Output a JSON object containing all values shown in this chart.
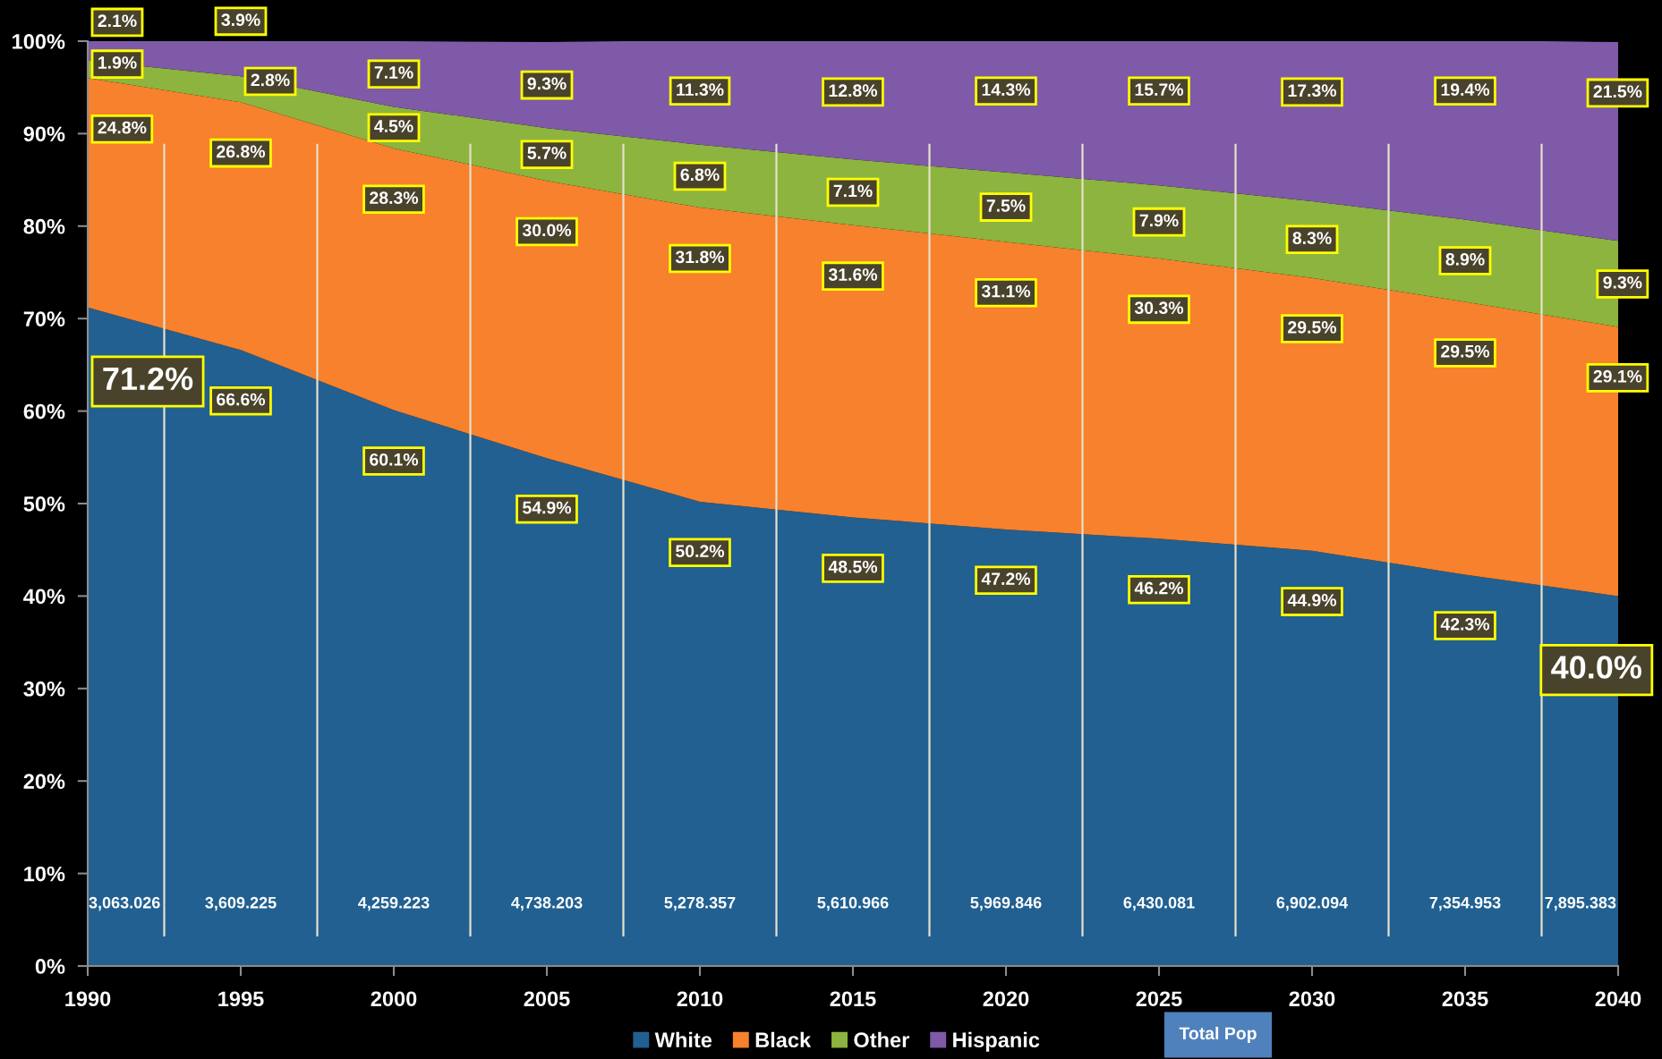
{
  "chart_data": {
    "type": "area",
    "stacked": true,
    "x": [
      1990,
      1995,
      2000,
      2005,
      2010,
      2015,
      2020,
      2025,
      2030,
      2035,
      2040
    ],
    "xlim": [
      1990,
      2040
    ],
    "xticks": [
      1990,
      1995,
      2000,
      2005,
      2010,
      2015,
      2020,
      2025,
      2030,
      2035,
      2040
    ],
    "ylim": [
      0,
      100
    ],
    "yticks": [
      {
        "value": 0,
        "label": "0%"
      },
      {
        "value": 10,
        "label": "10%"
      },
      {
        "value": 20,
        "label": "20%"
      },
      {
        "value": 30,
        "label": "30%"
      },
      {
        "value": 40,
        "label": "40%"
      },
      {
        "value": 50,
        "label": "50%"
      },
      {
        "value": 60,
        "label": "60%"
      },
      {
        "value": 70,
        "label": "70%"
      },
      {
        "value": 80,
        "label": "80%"
      },
      {
        "value": 90,
        "label": "90%"
      },
      {
        "value": 100,
        "label": "100%"
      }
    ],
    "series": [
      {
        "name": "White",
        "color": "#216091",
        "values": [
          71.2,
          66.6,
          60.1,
          54.9,
          50.2,
          48.5,
          47.2,
          46.2,
          44.9,
          42.3,
          40.0
        ],
        "value_labels": [
          "71.2%",
          "66.6%",
          "60.1%",
          "54.9%",
          "50.2%",
          "48.5%",
          "47.2%",
          "46.2%",
          "44.9%",
          "42.3%",
          "40.0%"
        ]
      },
      {
        "name": "Black",
        "color": "#f7812c",
        "values": [
          24.8,
          26.8,
          28.3,
          30.0,
          31.8,
          31.6,
          31.1,
          30.3,
          29.5,
          29.5,
          29.1
        ],
        "value_labels": [
          "24.8%",
          "26.8%",
          "28.3%",
          "30.0%",
          "31.8%",
          "31.6%",
          "31.1%",
          "30.3%",
          "29.5%",
          "29.5%",
          "29.1%"
        ]
      },
      {
        "name": "Other",
        "color": "#8db43e",
        "values": [
          1.9,
          2.8,
          4.5,
          5.7,
          6.8,
          7.1,
          7.5,
          7.9,
          8.3,
          8.9,
          9.3
        ],
        "value_labels": [
          "1.9%",
          "2.8%",
          "4.5%",
          "5.7%",
          "6.8%",
          "7.1%",
          "7.5%",
          "7.9%",
          "8.3%",
          "8.9%",
          "9.3%"
        ]
      },
      {
        "name": "Hispanic",
        "color": "#7e5aa8",
        "values": [
          2.1,
          3.9,
          7.1,
          9.3,
          11.3,
          12.8,
          14.3,
          15.7,
          17.3,
          19.4,
          21.5
        ],
        "value_labels": [
          "2.1%",
          "3.9%",
          "7.1%",
          "9.3%",
          "11.3%",
          "12.8%",
          "14.3%",
          "15.7%",
          "17.3%",
          "19.4%",
          "21.5%"
        ]
      }
    ],
    "legend": "bottom",
    "ref_lines": [
      {
        "axis": "x",
        "value": 1992.5,
        "color": "#e6e0cc"
      },
      {
        "axis": "x",
        "value": 1997.5,
        "color": "#e6e0cc"
      },
      {
        "axis": "x",
        "value": 2002.5,
        "color": "#e6e0cc"
      },
      {
        "axis": "x",
        "value": 2007.5,
        "color": "#e6e0cc"
      },
      {
        "axis": "x",
        "value": 2012.5,
        "color": "#e6e0cc"
      },
      {
        "axis": "x",
        "value": 2017.5,
        "color": "#e6e0cc"
      },
      {
        "axis": "x",
        "value": 2022.5,
        "color": "#e6e0cc"
      },
      {
        "axis": "x",
        "value": 2027.5,
        "color": "#e6e0cc"
      },
      {
        "axis": "x",
        "value": 2032.5,
        "color": "#e6e0cc"
      },
      {
        "axis": "x",
        "value": 2037.5,
        "color": "#e6e0cc"
      }
    ],
    "annotations": [
      "3,063.026",
      "3,609.225",
      "4,259.223",
      "4,738.203",
      "5,278.357",
      "5,610.966",
      "5,969.846",
      "6,430.081",
      "6,902.094",
      "7,354.953",
      "7,895.383",
      "Total Pop"
    ]
  }
}
